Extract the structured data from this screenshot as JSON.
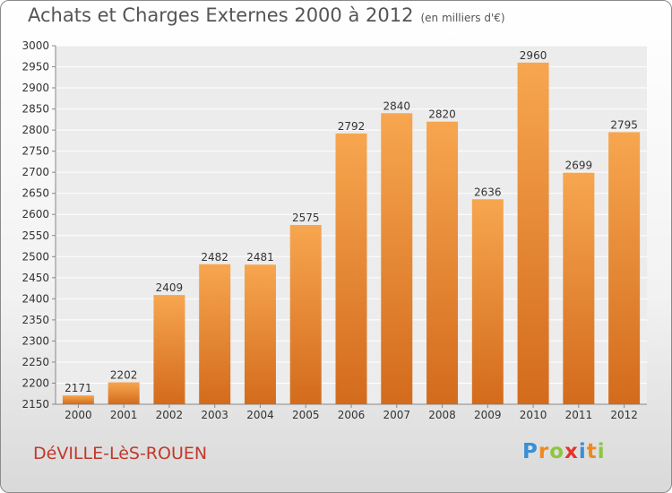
{
  "title": "Achats et Charges Externes 2000 à 2012",
  "unit": "(en milliers d'€)",
  "place": "DéVILLE-LèS-ROUEN",
  "logo": {
    "letters": [
      "P",
      "r",
      "o",
      "x",
      "i",
      "t",
      "i"
    ],
    "colors": [
      "#3a8fd6",
      "#ef8a1e",
      "#8cc63f",
      "#e6332a",
      "#3a8fd6",
      "#ef8a1e",
      "#8cc63f"
    ]
  },
  "colors": {
    "bar_top": "#f7a64f",
    "bar_bottom": "#d36b1c",
    "title": "#555555",
    "place": "#c0392b"
  },
  "chart_data": {
    "type": "bar",
    "categories": [
      "2000",
      "2001",
      "2002",
      "2003",
      "2004",
      "2005",
      "2006",
      "2007",
      "2008",
      "2009",
      "2010",
      "2011",
      "2012"
    ],
    "values": [
      2171,
      2202,
      2409,
      2482,
      2481,
      2575,
      2792,
      2840,
      2820,
      2636,
      2960,
      2699,
      2795
    ],
    "ylim": [
      2150,
      3000
    ],
    "yticks": [
      2150,
      2200,
      2250,
      2300,
      2350,
      2400,
      2450,
      2500,
      2550,
      2600,
      2650,
      2700,
      2750,
      2800,
      2850,
      2900,
      2950,
      3000
    ],
    "grid": true,
    "data_labels": true
  }
}
